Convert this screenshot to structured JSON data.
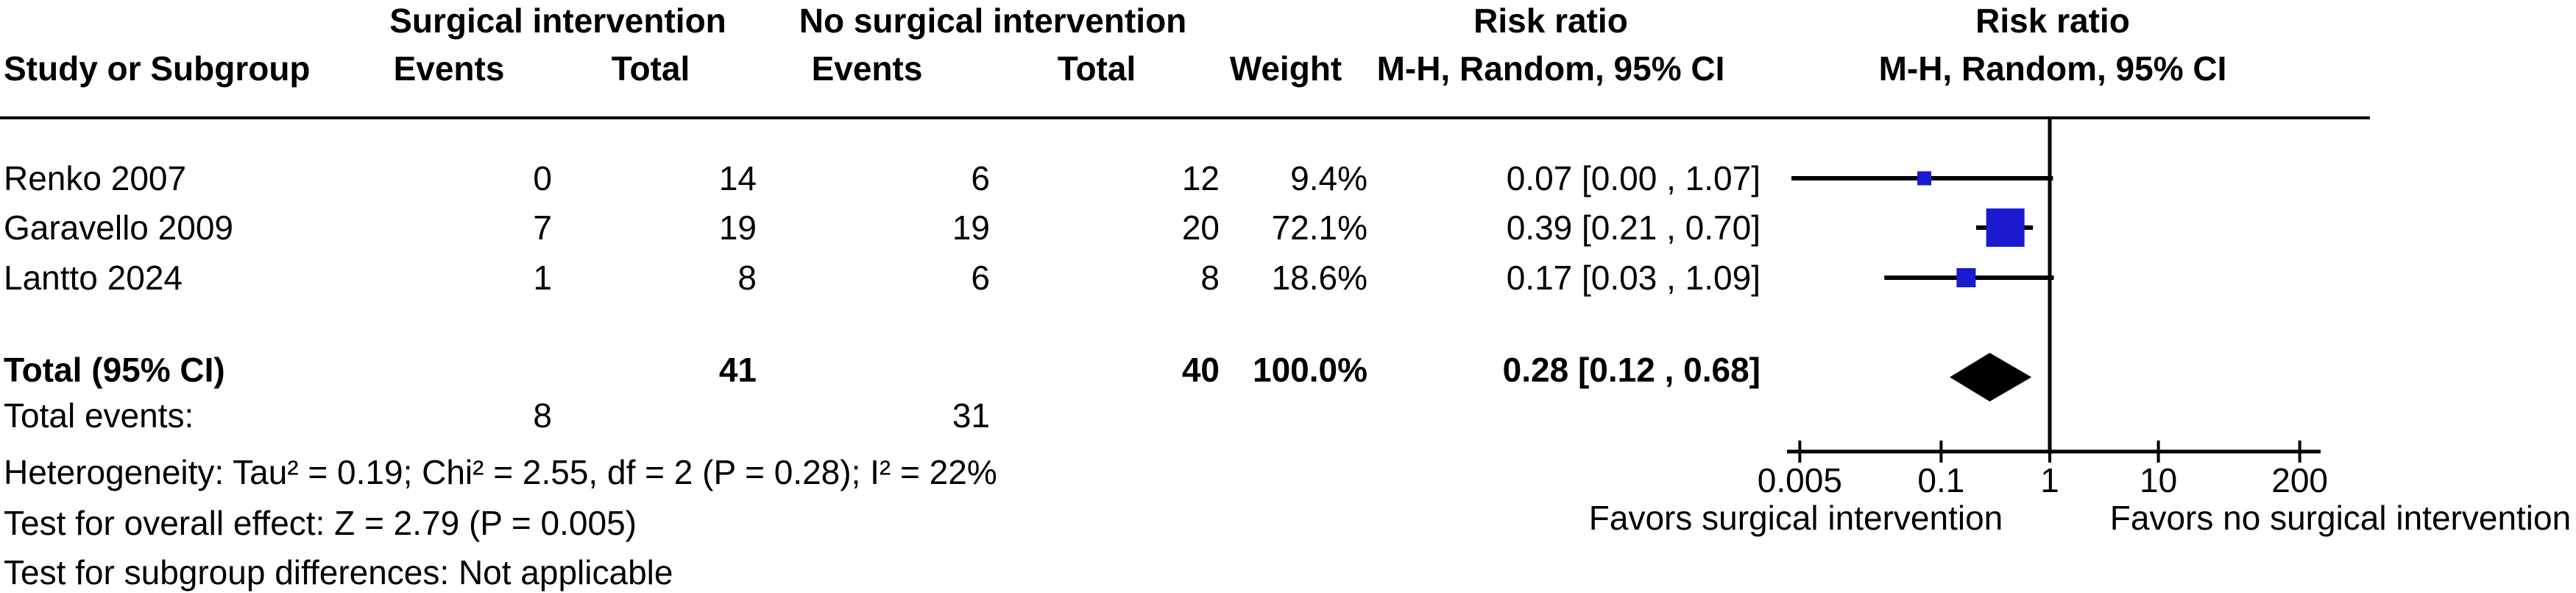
{
  "header": {
    "group1": "Surgical intervention",
    "group2": "No surgical intervention",
    "risk_ratio": "Risk ratio",
    "study": "Study or Subgroup",
    "events": "Events",
    "total": "Total",
    "weight": "Weight",
    "mh_ci": "M-H, Random, 95% CI"
  },
  "total_events_row": {
    "label": "Total events:",
    "surgical": 8,
    "no_surgical": 31
  },
  "footer": {
    "heterogeneity": "Heterogeneity: Tau² = 0.19; Chi² = 2.55, df = 2 (P = 0.28); I² = 22%",
    "overall_effect": "Test for overall effect: Z = 2.79 (P = 0.005)",
    "subgroup_differences": "Test for subgroup differences: Not applicable"
  },
  "axis": {
    "favors_left": "Favors surgical intervention",
    "favors_right": "Favors no surgical intervention"
  },
  "chart_data": {
    "type": "forest_plot",
    "effect_measure": "Risk ratio",
    "method": "M-H, Random, 95% CI",
    "x_scale": "log",
    "x_ticks": [
      0.005,
      0.1,
      1,
      10,
      200
    ],
    "x_tick_labels": [
      "0.005",
      "0.1",
      "1",
      "10",
      "200"
    ],
    "x_range": [
      0.005,
      200
    ],
    "null_line": 1,
    "studies": [
      {
        "label": "Renko 2007",
        "events_surgical": 0,
        "total_surgical": 14,
        "events_no_surgical": 6,
        "total_no_surgical": 12,
        "weight": "9.4%",
        "weight_pct": 9.4,
        "rr": 0.07,
        "ci_low": 0.0,
        "ci_high": 1.07,
        "ci_text": "0.07 [0.00 , 1.07]"
      },
      {
        "label": "Garavello 2009",
        "events_surgical": 7,
        "total_surgical": 19,
        "events_no_surgical": 19,
        "total_no_surgical": 20,
        "weight": "72.1%",
        "weight_pct": 72.1,
        "rr": 0.39,
        "ci_low": 0.21,
        "ci_high": 0.7,
        "ci_text": "0.39 [0.21 , 0.70]"
      },
      {
        "label": "Lantto 2024",
        "events_surgical": 1,
        "total_surgical": 8,
        "events_no_surgical": 6,
        "total_no_surgical": 8,
        "weight": "18.6%",
        "weight_pct": 18.6,
        "rr": 0.17,
        "ci_low": 0.03,
        "ci_high": 1.09,
        "ci_text": "0.17 [0.03 , 1.09]"
      }
    ],
    "total": {
      "label": "Total (95% CI)",
      "total_surgical": 41,
      "total_no_surgical": 40,
      "weight": "100.0%",
      "weight_pct": 100.0,
      "rr": 0.28,
      "ci_low": 0.12,
      "ci_high": 0.68,
      "ci_text": "0.28 [0.12 , 0.68]"
    },
    "colors": {
      "square": "#1A1ACF",
      "diamond": "#000000",
      "line": "#000000"
    }
  }
}
